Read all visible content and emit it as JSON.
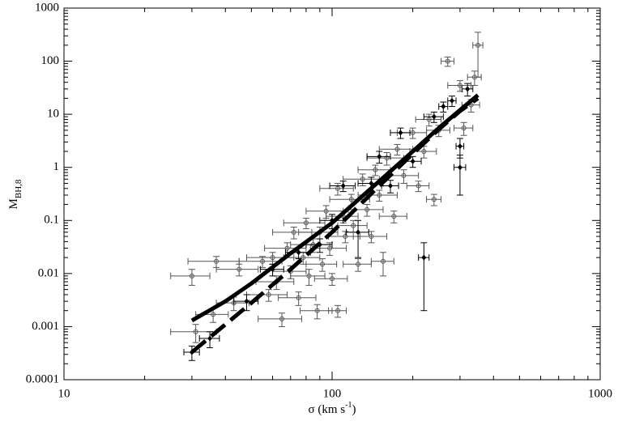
{
  "chart_data": {
    "type": "scatter",
    "xlabel": "σ (km s",
    "xlabel_sup": "-1",
    "xlabel_end": ")",
    "ylabel": "M",
    "ylabel_sub": "BH,8",
    "xscale": "log",
    "yscale": "log",
    "xlim": [
      10,
      1000
    ],
    "xticks": [
      10,
      100,
      1000
    ],
    "ylim": [
      0.0001,
      1000
    ],
    "yticks": [
      0.0001,
      0.001,
      0.01,
      0.1,
      1,
      10,
      100,
      1000
    ],
    "series": [
      {
        "marker": "circle",
        "color": "#555555",
        "x": [
          31,
          30,
          36,
          37,
          45,
          43,
          55,
          58,
          60,
          62,
          65,
          68,
          70,
          72,
          75,
          78,
          80,
          82,
          85,
          88,
          90,
          92,
          95,
          98,
          100,
          105,
          105,
          110,
          112,
          118,
          120,
          125,
          130,
          135,
          140,
          145,
          150,
          155,
          160,
          170,
          175,
          185,
          200,
          210,
          220,
          230,
          240,
          250,
          270,
          300,
          310,
          330,
          340,
          350
        ],
        "values": [
          0.0008,
          0.009,
          0.0017,
          0.017,
          0.012,
          0.0028,
          0.017,
          0.004,
          0.02,
          0.007,
          0.0014,
          0.03,
          0.011,
          0.06,
          0.0035,
          0.02,
          0.09,
          0.009,
          0.035,
          0.002,
          0.06,
          0.015,
          0.15,
          0.03,
          0.008,
          0.002,
          0.4,
          0.12,
          0.05,
          0.25,
          0.08,
          0.015,
          0.6,
          0.16,
          0.05,
          0.9,
          0.3,
          0.017,
          1.5,
          0.12,
          2.2,
          0.7,
          4.5,
          0.45,
          2,
          8,
          0.25,
          5,
          100,
          35,
          5.5,
          15,
          50,
          200
        ],
        "xerr": [
          6,
          5,
          5,
          8,
          8,
          6,
          10,
          10,
          12,
          10,
          12,
          12,
          10,
          12,
          12,
          12,
          14,
          12,
          15,
          12,
          15,
          12,
          15,
          15,
          14,
          8,
          15,
          15,
          15,
          20,
          15,
          15,
          20,
          20,
          20,
          20,
          25,
          15,
          25,
          20,
          25,
          25,
          25,
          20,
          25,
          25,
          15,
          25,
          15,
          30,
          25,
          25,
          20,
          15
        ],
        "yerr": [
          0.0003,
          0.003,
          0.0005,
          0.004,
          0.003,
          0.0008,
          0.004,
          0.001,
          0.005,
          0.002,
          0.0004,
          0.008,
          0.003,
          0.015,
          0.001,
          0.005,
          0.02,
          0.003,
          0.01,
          0.0006,
          0.015,
          0.004,
          0.04,
          0.008,
          0.002,
          0.0005,
          0.1,
          0.03,
          0.012,
          0.06,
          0.02,
          0.004,
          0.15,
          0.04,
          0.012,
          0.2,
          0.07,
          0.008,
          0.4,
          0.03,
          0.5,
          0.2,
          1,
          0.1,
          0.5,
          2,
          0.06,
          1.2,
          20,
          8,
          1.5,
          4,
          15,
          150
        ]
      },
      {
        "marker": "diamond",
        "color": "#000000",
        "x": [
          30,
          35,
          48,
          60,
          75,
          90,
          100,
          110,
          125,
          140,
          150,
          165,
          180,
          200,
          220,
          240,
          260,
          280,
          300,
          300,
          320
        ],
        "values": [
          0.00033,
          0.0006,
          0.003,
          0.012,
          0.025,
          0.035,
          0.1,
          0.45,
          0.06,
          0.5,
          1.6,
          0.45,
          4.5,
          1.3,
          0.02,
          9,
          14,
          18,
          2.5,
          1,
          30
        ],
        "xerr": [
          2,
          3,
          5,
          6,
          8,
          10,
          10,
          12,
          12,
          15,
          15,
          12,
          15,
          15,
          10,
          20,
          10,
          10,
          10,
          15,
          15
        ],
        "yerr": [
          0.0001,
          0.0002,
          0.001,
          0.003,
          0.006,
          0.01,
          0.03,
          0.1,
          0.04,
          0.15,
          0.4,
          0.12,
          1,
          0.3,
          0.018,
          2,
          3,
          4,
          1,
          0.7,
          8
        ]
      }
    ],
    "fits": [
      {
        "dash": false,
        "color": "#000000",
        "x": [
          30,
          40,
          50,
          70,
          100,
          150,
          200,
          250,
          300,
          350
        ],
        "values": [
          0.0013,
          0.003,
          0.0065,
          0.024,
          0.09,
          0.55,
          2,
          5.5,
          12,
          23
        ]
      },
      {
        "dash": true,
        "color": "#000000",
        "x": [
          30,
          40,
          50,
          70,
          100,
          150,
          200,
          250,
          300,
          350
        ],
        "values": [
          0.00033,
          0.0011,
          0.0028,
          0.012,
          0.06,
          0.45,
          1.8,
          5.2,
          11.5,
          20
        ]
      }
    ]
  }
}
